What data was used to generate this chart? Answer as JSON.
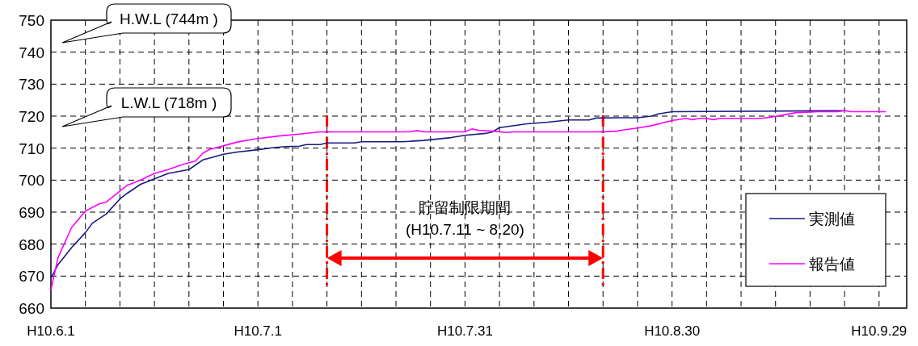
{
  "chart_data": {
    "type": "line",
    "xlim": [
      "--06-01",
      "--10-03"
    ],
    "ylim": [
      660,
      750
    ],
    "yticks": [
      660,
      670,
      680,
      690,
      700,
      710,
      720,
      730,
      740,
      750
    ],
    "xticks": [
      {
        "value": "--06-01",
        "label": "H10.6.1"
      },
      {
        "value": "--06-06",
        "label": null
      },
      {
        "value": "--06-11",
        "label": null
      },
      {
        "value": "--06-16",
        "label": null
      },
      {
        "value": "--06-21",
        "label": null
      },
      {
        "value": "--06-26",
        "label": null
      },
      {
        "value": "--07-01",
        "label": "H10.7.1"
      },
      {
        "value": "--07-06",
        "label": null
      },
      {
        "value": "--07-11",
        "label": null
      },
      {
        "value": "--07-16",
        "label": null
      },
      {
        "value": "--07-21",
        "label": null
      },
      {
        "value": "--07-26",
        "label": null
      },
      {
        "value": "--07-31",
        "label": "H10.7.31"
      },
      {
        "value": "--08-05",
        "label": null
      },
      {
        "value": "--08-10",
        "label": null
      },
      {
        "value": "--08-15",
        "label": null
      },
      {
        "value": "--08-20",
        "label": null
      },
      {
        "value": "--08-25",
        "label": null
      },
      {
        "value": "--08-30",
        "label": "H10.8.30"
      },
      {
        "value": "--09-04",
        "label": null
      },
      {
        "value": "--09-09",
        "label": null
      },
      {
        "value": "--09-14",
        "label": null
      },
      {
        "value": "--09-19",
        "label": null
      },
      {
        "value": "--09-24",
        "label": null
      },
      {
        "value": "--09-29",
        "label": "H10.9.29"
      }
    ],
    "grid": true,
    "legend": "bottom right",
    "line_style": "solid",
    "series": [
      {
        "name": "実測値",
        "color": "#1a1a80",
        "x": [
          "--06-01",
          "--06-02",
          "--06-04",
          "--06-06",
          "--06-07",
          "--06-09",
          "--06-11",
          "--06-12",
          "--06-14",
          "--06-16",
          "--06-18",
          "--06-21",
          "--06-23",
          "--06-24",
          "--06-26",
          "--06-28",
          "--07-01",
          "--07-03",
          "--07-05",
          "--07-07",
          "--07-08",
          "--07-10",
          "--07-11",
          "--07-15",
          "--07-16",
          "--07-22",
          "--07-25",
          "--07-29",
          "--07-31",
          "--08-03",
          "--08-04",
          "--08-05",
          "--08-09",
          "--08-12",
          "--08-15",
          "--08-18",
          "--08-19",
          "--08-22",
          "--08-25",
          "--08-27",
          "--08-28",
          "--08-30",
          "--09-24"
        ],
        "values": [
          669.3,
          673.5,
          678.9,
          683.6,
          686.5,
          689.4,
          694.1,
          695.8,
          698.7,
          700.4,
          702.1,
          703.3,
          706.3,
          706.9,
          708.1,
          708.8,
          709.5,
          710.1,
          710.5,
          710.6,
          711.1,
          711.1,
          711.6,
          711.6,
          712.0,
          712.0,
          712.4,
          713.3,
          714.0,
          714.6,
          715.1,
          716.4,
          717.6,
          718.1,
          718.8,
          718.8,
          719.4,
          719.5,
          719.5,
          720.0,
          720.7,
          721.4,
          721.7
        ]
      },
      {
        "name": "報告値",
        "color": "#ff00ff",
        "x": [
          "--06-01",
          "--06-02",
          "--06-04",
          "--06-06",
          "--06-08",
          "--06-09",
          "--06-12",
          "--06-14",
          "--06-16",
          "--06-18",
          "--06-20",
          "--06-22",
          "--06-23",
          "--06-24",
          "--06-26",
          "--06-28",
          "--07-01",
          "--07-04",
          "--07-07",
          "--07-10",
          "--07-11",
          "--07-23",
          "--07-24",
          "--07-25",
          "--07-31",
          "--08-01",
          "--08-02",
          "--08-04",
          "--08-06",
          "--08-07",
          "--08-20",
          "--08-22",
          "--08-23",
          "--08-25",
          "--08-27",
          "--08-30",
          "--09-01",
          "--09-02",
          "--09-03",
          "--09-04",
          "--09-05",
          "--09-06",
          "--09-12",
          "--09-14",
          "--09-17",
          "--09-19",
          "--09-20",
          "--09-23",
          "--09-24",
          "--09-25",
          "--09-30"
        ],
        "values": [
          665.5,
          675.6,
          685.2,
          690.3,
          692.6,
          693.1,
          698.3,
          700.0,
          702.1,
          703.3,
          704.8,
          706.0,
          708.4,
          709.6,
          710.7,
          711.9,
          713.0,
          713.8,
          714.4,
          715.1,
          715.1,
          715.1,
          715.5,
          715.1,
          715.1,
          716.0,
          715.6,
          715.3,
          714.9,
          715.1,
          715.1,
          715.3,
          715.7,
          716.3,
          717.0,
          718.6,
          719.3,
          718.9,
          719.3,
          719.3,
          718.9,
          719.3,
          719.3,
          719.9,
          721.1,
          721.3,
          721.4,
          721.4,
          721.7,
          721.4,
          721.4
        ]
      }
    ],
    "ref_lines": [
      {
        "axis": "x",
        "value": "--07-11",
        "color": "#ff0000",
        "line_style": "dashed"
      },
      {
        "axis": "x",
        "value": "--08-20",
        "color": "#ff0000",
        "line_style": "dashed"
      }
    ],
    "annotations": [
      "H.W.L (744m )",
      "L.W.L (718m )",
      "貯留制限期間\n(H10.7.11 ~ 8.20)"
    ]
  }
}
